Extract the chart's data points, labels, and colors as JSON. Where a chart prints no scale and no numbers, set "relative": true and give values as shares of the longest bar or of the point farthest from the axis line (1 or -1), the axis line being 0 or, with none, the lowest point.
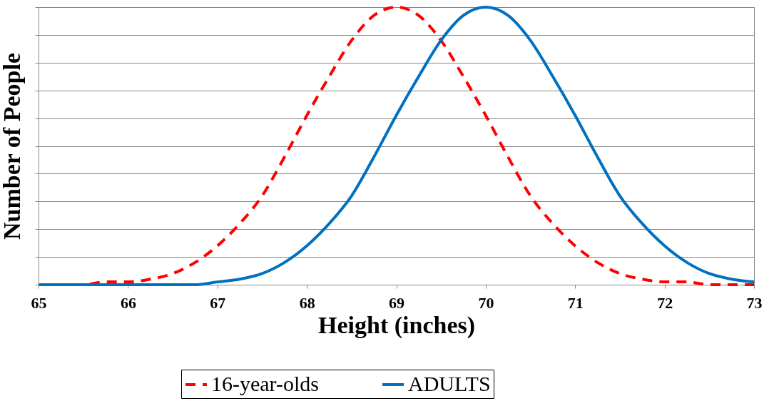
{
  "chart_data": {
    "type": "line",
    "relative": true,
    "xlabel": "Height (inches)",
    "ylabel": "Number of People",
    "x": [
      65,
      65.25,
      65.5,
      65.75,
      66,
      66.25,
      66.5,
      66.75,
      67,
      67.25,
      67.5,
      67.75,
      68,
      68.25,
      68.5,
      68.75,
      69,
      69.25,
      69.5,
      69.75,
      70,
      70.25,
      70.5,
      70.75,
      71,
      71.25,
      71.5,
      71.75,
      72,
      72.25,
      72.5,
      72.75,
      73
    ],
    "xlim": [
      65,
      73
    ],
    "xticks": [
      65,
      66,
      67,
      68,
      69,
      70,
      71,
      72,
      73
    ],
    "series": [
      {
        "name": "16-year-olds",
        "color": "#ff0000",
        "line_style": "dashed",
        "values": [
          0,
          0,
          0,
          0.01,
          0.01,
          0.02,
          0.04,
          0.08,
          0.14,
          0.22,
          0.32,
          0.46,
          0.61,
          0.75,
          0.88,
          0.97,
          1,
          0.97,
          0.88,
          0.75,
          0.61,
          0.46,
          0.32,
          0.22,
          0.14,
          0.08,
          0.04,
          0.02,
          0.01,
          0.01,
          0,
          0,
          0
        ]
      },
      {
        "name": "ADULTS",
        "color": "#0070c0",
        "line_style": "solid",
        "values": [
          0,
          0,
          0,
          0,
          0,
          0,
          0,
          0,
          0.01,
          0.02,
          0.04,
          0.08,
          0.14,
          0.22,
          0.32,
          0.46,
          0.61,
          0.75,
          0.88,
          0.97,
          1,
          0.97,
          0.88,
          0.75,
          0.61,
          0.46,
          0.32,
          0.22,
          0.14,
          0.08,
          0.04,
          0.02,
          0.01
        ]
      }
    ],
    "grid": "y",
    "legend": "bottom",
    "marker": "none"
  }
}
